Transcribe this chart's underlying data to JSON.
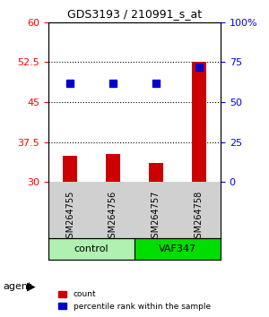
{
  "title": "GDS3193 / 210991_s_at",
  "samples": [
    "GSM264755",
    "GSM264756",
    "GSM264757",
    "GSM264758"
  ],
  "counts": [
    35.0,
    35.2,
    33.5,
    52.5
  ],
  "percentile_ranks": [
    62.0,
    62.0,
    61.5,
    72.0
  ],
  "groups": [
    "control",
    "control",
    "VAF347",
    "VAF347"
  ],
  "group_labels": [
    "control",
    "VAF347"
  ],
  "group_colors": [
    "#90EE90",
    "#00CC00"
  ],
  "bar_color": "#CC0000",
  "dot_color": "#0000CC",
  "left_ylim": [
    30,
    60
  ],
  "right_ylim": [
    0,
    100
  ],
  "left_yticks": [
    30,
    37.5,
    45,
    52.5,
    60
  ],
  "right_yticks": [
    0,
    25,
    50,
    75,
    100
  ],
  "right_yticklabels": [
    "0",
    "25",
    "50",
    "75",
    "100%"
  ],
  "hlines": [
    37.5,
    45.0,
    52.5
  ],
  "background_color": "#ffffff",
  "legend_count_label": "count",
  "legend_pct_label": "percentile rank within the sample"
}
